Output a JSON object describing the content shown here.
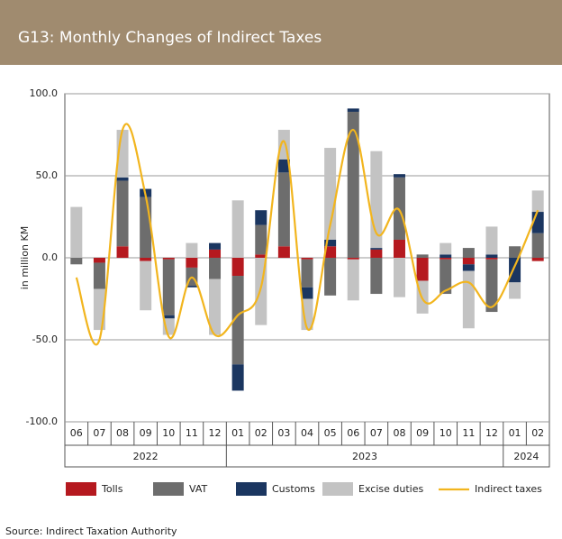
{
  "chart_data": {
    "type": "stacked_bar_line",
    "title": "G13: Monthly Changes of Indirect Taxes",
    "y_label": "in million KM",
    "source": "Source: Indirect Taxation Authority",
    "categories": [
      "06",
      "07",
      "08",
      "09",
      "10",
      "11",
      "12",
      "01",
      "02",
      "03",
      "04",
      "05",
      "06",
      "07",
      "08",
      "09",
      "10",
      "11",
      "12",
      "01",
      "02"
    ],
    "year_labels": [
      "2022",
      "2023",
      "2024"
    ],
    "ylim": [
      -100,
      100
    ],
    "yticks": [
      {
        "value": -100,
        "label": "-100.0"
      },
      {
        "value": -50,
        "label": "-50.0"
      },
      {
        "value": 0,
        "label": "0.0"
      },
      {
        "value": 50,
        "label": "50.0"
      },
      {
        "value": 100,
        "label": "100.0"
      }
    ],
    "grid": true,
    "series": [
      {
        "name": "Tolls",
        "color": "#b5191f",
        "values": [
          0,
          -3,
          7,
          -2,
          -1,
          -6,
          5,
          -11,
          2,
          7,
          -1,
          7,
          -1,
          5,
          11,
          -14,
          -1,
          -4,
          -1,
          0,
          -2
        ]
      },
      {
        "name": "VAT",
        "color": "#6d6d6d",
        "values": [
          -4,
          -16,
          40,
          37,
          -34,
          -11,
          -13,
          -54,
          18,
          45,
          -17,
          -23,
          89,
          -22,
          38,
          2,
          -21,
          6,
          -32,
          7,
          15
        ]
      },
      {
        "name": "Customs",
        "color": "#1b3660",
        "values": [
          0,
          0,
          2,
          5,
          -2,
          -1,
          4,
          -16,
          9,
          8,
          -7,
          4,
          2,
          1,
          2,
          0,
          2,
          -4,
          2,
          -15,
          13
        ]
      },
      {
        "name": "Excise duties",
        "color": "#c3c3c3",
        "values": [
          31,
          -25,
          29,
          -30,
          -10,
          9,
          -34,
          35,
          -41,
          18,
          -19,
          56,
          -25,
          59,
          -24,
          -20,
          7,
          -35,
          17,
          -10,
          13
        ]
      },
      {
        "name": "Indirect taxes",
        "type": "line",
        "color": "#f2b51e",
        "values": [
          -12,
          -50,
          78,
          38,
          -48,
          -12,
          -47,
          -35,
          -18,
          71,
          -43,
          20,
          78,
          15,
          29,
          -25,
          -20,
          -15,
          -30,
          -5,
          29
        ]
      }
    ]
  }
}
